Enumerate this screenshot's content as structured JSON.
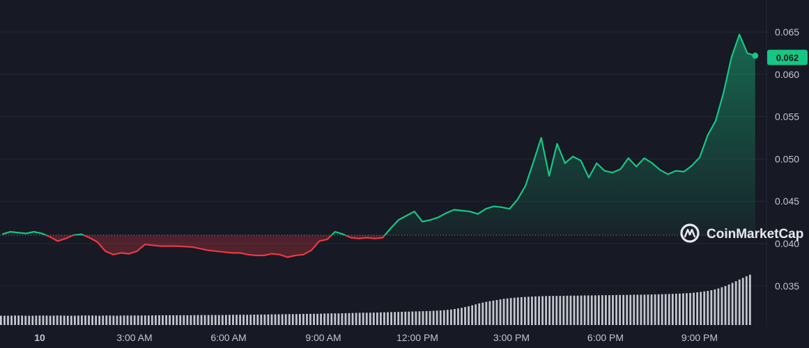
{
  "brand": {
    "name": "CoinMarketCap"
  },
  "colors": {
    "background": "#171924",
    "grid": "#262937",
    "up": "#16c784",
    "down": "#ea3943",
    "volume": "#d8dae2",
    "axis_text": "#c3c6d1"
  },
  "chart_data": {
    "type": "line",
    "title": "",
    "xlabel": "",
    "ylabel": "",
    "ylim": [
      0.031,
      0.069
    ],
    "y_ticks": [
      "0.065",
      "0.060",
      "0.055",
      "0.050",
      "0.045",
      "0.040",
      "0.035"
    ],
    "x_ticks": [
      "10",
      "3:00 AM",
      "6:00 AM",
      "9:00 AM",
      "12:00 PM",
      "3:00 PM",
      "6:00 PM",
      "9:00 PM"
    ],
    "baseline": 0.041,
    "current_price": "0.062",
    "series": [
      {
        "x_hours": [
          0,
          0.25,
          0.5,
          0.75,
          1.0,
          1.25,
          1.5,
          1.75,
          2.0,
          2.25,
          2.5,
          2.75,
          3.0,
          3.25,
          3.5,
          3.75,
          4.0,
          4.25,
          4.5,
          4.75,
          5.0,
          5.5,
          6.0,
          6.5,
          7.0,
          7.25,
          7.5,
          7.75,
          8.0,
          8.25,
          8.5,
          8.75,
          9.0,
          9.25,
          9.5,
          9.75,
          10.0,
          10.25,
          10.5,
          10.75,
          11.0,
          11.25,
          11.5,
          11.75,
          12.0,
          12.25,
          12.5,
          12.75,
          13.0,
          13.25,
          13.5,
          13.75,
          14.0,
          14.25,
          14.5,
          14.75,
          15.0,
          15.25,
          15.5,
          15.75,
          16.0,
          16.25,
          16.5,
          16.75,
          17.0,
          17.25,
          17.5,
          17.75,
          18.0,
          18.25,
          18.5,
          18.75,
          19.0,
          19.25,
          19.5,
          19.75,
          20.0,
          20.25,
          20.5,
          20.75,
          21.0,
          21.25,
          21.5,
          21.75,
          22.0,
          22.25,
          22.5,
          22.75,
          23.0,
          23.25,
          23.5,
          23.75
        ],
        "values": [
          0.0411,
          0.0414,
          0.0413,
          0.0412,
          0.0414,
          0.0412,
          0.0408,
          0.0403,
          0.0406,
          0.041,
          0.0411,
          0.0407,
          0.0402,
          0.0391,
          0.0387,
          0.0389,
          0.0388,
          0.0391,
          0.0399,
          0.0398,
          0.0397,
          0.0397,
          0.0396,
          0.0392,
          0.039,
          0.0389,
          0.0389,
          0.0387,
          0.0386,
          0.0386,
          0.0388,
          0.0387,
          0.0384,
          0.0386,
          0.0387,
          0.0392,
          0.0403,
          0.0405,
          0.0414,
          0.0411,
          0.0407,
          0.0406,
          0.0407,
          0.0406,
          0.0407,
          0.0418,
          0.0428,
          0.0433,
          0.0438,
          0.0426,
          0.0428,
          0.0431,
          0.0436,
          0.044,
          0.0439,
          0.0438,
          0.0435,
          0.0441,
          0.0444,
          0.0443,
          0.0441,
          0.0452,
          0.0468,
          0.0496,
          0.0525,
          0.048,
          0.0518,
          0.0495,
          0.0503,
          0.0498,
          0.0478,
          0.0495,
          0.0486,
          0.0484,
          0.0488,
          0.0501,
          0.0491,
          0.0501,
          0.0495,
          0.0487,
          0.0482,
          0.0486,
          0.0485,
          0.0492,
          0.0502,
          0.0528,
          0.0545,
          0.0578,
          0.062,
          0.0647,
          0.0625,
          0.0622
        ]
      }
    ],
    "volume": [
      4.0,
      4.0,
      4.1,
      4.0,
      4.0,
      4.1,
      4.0,
      4.1,
      4.0,
      4.0,
      4.1,
      4.1,
      4.0,
      4.1,
      4.0,
      4.1,
      4.1,
      4.1,
      4.1,
      4.2,
      4.2,
      4.2,
      4.2,
      4.2,
      4.3,
      4.3,
      4.3,
      4.3,
      4.4,
      4.4,
      4.4,
      4.5,
      4.5,
      4.6,
      4.6,
      4.7,
      4.7,
      4.8,
      4.8,
      4.9,
      5.0,
      5.0,
      5.1,
      5.2,
      5.3,
      5.3,
      5.4,
      5.5,
      5.6,
      5.7,
      5.8,
      5.9,
      6.0,
      6.2,
      6.4,
      6.8,
      7.4,
      8.2,
      9.2,
      10.0,
      10.6,
      11.2,
      11.6,
      11.9,
      12.1,
      12.3,
      12.4,
      12.5,
      12.5,
      12.6,
      12.6,
      12.7,
      12.7,
      12.8,
      12.8,
      12.9,
      12.9,
      13.0,
      13.0,
      13.1,
      13.2,
      13.3,
      13.4,
      13.6,
      13.8,
      14.2,
      14.7,
      15.5,
      16.7,
      18.3,
      20.0,
      21.6
    ],
    "grid": true
  }
}
